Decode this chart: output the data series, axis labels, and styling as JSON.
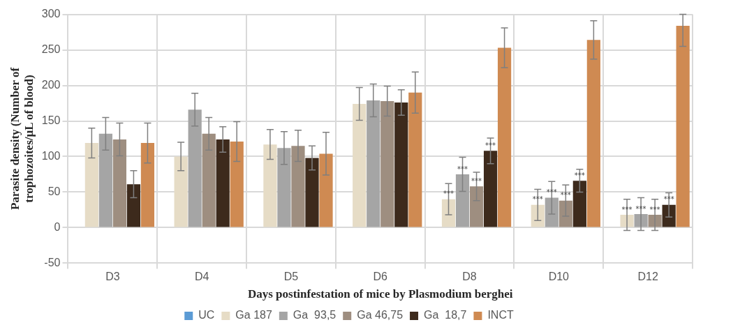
{
  "chart_data": {
    "type": "bar",
    "xlabel": "Days postinfestation of mice by Plasmodium berghei",
    "ylabel": "Parasite density (Number of trophozoites/µL of blood)",
    "categories": [
      "D3",
      "D4",
      "D5",
      "D6",
      "D8",
      "D10",
      "D12"
    ],
    "ylim": [
      -50,
      300
    ],
    "yticks": [
      -50,
      0,
      50,
      100,
      150,
      200,
      250,
      300
    ],
    "grid": true,
    "legend": "bottom",
    "series": [
      {
        "name": "UC",
        "color": "#5b9bd5",
        "values": [
          0,
          0,
          0,
          0,
          0,
          0,
          0
        ]
      },
      {
        "name": "Ga 187",
        "color": "#e6dcc6",
        "values": [
          119,
          100,
          117,
          174,
          40,
          32,
          18
        ],
        "errors": [
          21,
          20,
          21,
          23,
          22,
          22,
          22
        ],
        "value_labels": [
          null,
          null,
          null,
          null,
          "***",
          "***",
          "***"
        ]
      },
      {
        "name": "Ga  93,5",
        "color": "#a5a5a5",
        "values": [
          132,
          166,
          112,
          179,
          75,
          42,
          19
        ],
        "errors": [
          23,
          23,
          23,
          23,
          24,
          23,
          23
        ],
        "value_labels": [
          null,
          null,
          null,
          null,
          "***",
          "***",
          "***"
        ]
      },
      {
        "name": "Ga 46,75",
        "color": "#9e8e80",
        "values": [
          124,
          132,
          115,
          178,
          58,
          38,
          18
        ],
        "errors": [
          23,
          23,
          22,
          21,
          20,
          22,
          22
        ],
        "value_labels": [
          null,
          null,
          null,
          null,
          "***",
          "***",
          "***"
        ]
      },
      {
        "name": "Ga  18,7",
        "color": "#3d2a1c",
        "values": [
          61,
          124,
          98,
          176,
          108,
          66,
          32
        ],
        "errors": [
          19,
          18,
          17,
          18,
          18,
          16,
          17
        ],
        "value_labels": [
          null,
          null,
          null,
          null,
          "***",
          "***",
          "***"
        ]
      },
      {
        "name": "INCT",
        "color": "#cf8a52",
        "values": [
          119,
          121,
          104,
          190,
          253,
          264,
          284
        ],
        "errors": [
          28,
          28,
          30,
          29,
          28,
          27,
          [
            255,
            300
          ]
        ]
      }
    ]
  }
}
